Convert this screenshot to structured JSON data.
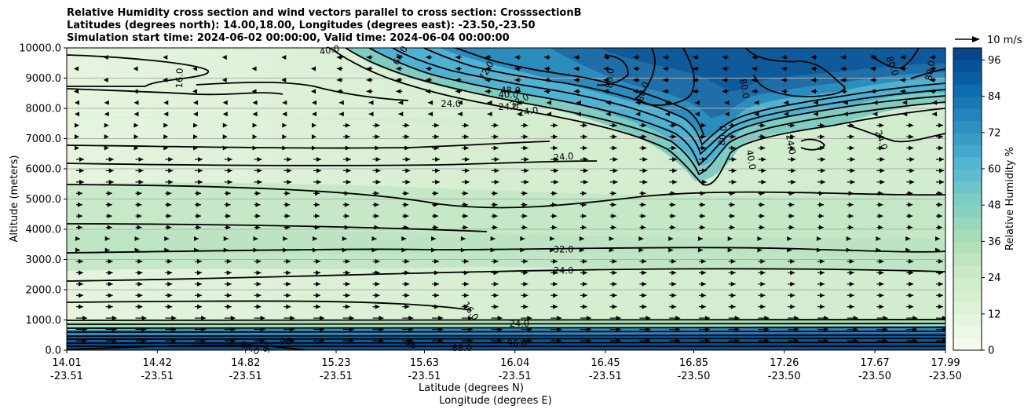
{
  "chart_data": {
    "type": "heatmap",
    "title_lines": [
      "Relative Humidity cross section and wind vectors parallel to cross section: CrosssectionB",
      "Latitudes (degrees north): 14.00,18.00, Longitudes (degrees east): -23.50,-23.50",
      "Simulation start time: 2024-06-02 00:00:00, Valid time: 2024-06-04 00:00:00"
    ],
    "ylabel": "Altitude (meters)",
    "xlabel_lat": "Latitude (degrees N)",
    "xlabel_lon": "Longitude (degrees E)",
    "ylim": [
      0,
      10000
    ],
    "y_ticks": [
      0,
      1000,
      2000,
      3000,
      4000,
      5000,
      6000,
      7000,
      8000,
      9000,
      10000
    ],
    "y_tick_labels": [
      "0.0",
      "1000.0",
      "2000.0",
      "3000.0",
      "4000.0",
      "5000.0",
      "6000.0",
      "7000.0",
      "8000.0",
      "9000.0",
      "10000.0"
    ],
    "xlim": [
      14.01,
      17.99
    ],
    "x_ticks_lat": [
      "14.01",
      "14.42",
      "14.82",
      "15.23",
      "15.63",
      "16.04",
      "16.45",
      "16.85",
      "17.26",
      "17.67",
      "17.99"
    ],
    "x_ticks_lon": [
      "-23.51",
      "-23.51",
      "-23.51",
      "-23.51",
      "-23.51",
      "-23.51",
      "-23.51",
      "-23.50",
      "-23.50",
      "-23.50",
      "-23.50"
    ],
    "grid": "horizontal",
    "colorbar": {
      "label": "Relative Humidity %",
      "ticks": [
        "0",
        "12",
        "24",
        "36",
        "48",
        "60",
        "72",
        "84",
        "96"
      ],
      "range": [
        0,
        100
      ],
      "levels": 25,
      "colormap": [
        "#f7fcf0",
        "#e0f3db",
        "#ccebc5",
        "#a8ddb5",
        "#7bccc4",
        "#4eb3d3",
        "#2b8cbe",
        "#0868ac",
        "#084081"
      ]
    },
    "quiver_key": {
      "label": "10 m/s"
    },
    "contour_labels": [
      {
        "text": "40.0",
        "lat": 15.2,
        "alt": 9930,
        "angle": -10
      },
      {
        "text": "64.0",
        "lat": 15.52,
        "alt": 9750,
        "angle": -60
      },
      {
        "text": "16.0",
        "lat": 14.52,
        "alt": 9000,
        "angle": -88
      },
      {
        "text": "72.0",
        "lat": 15.91,
        "alt": 9250,
        "angle": -60
      },
      {
        "text": "48.0",
        "lat": 16.02,
        "alt": 8600,
        "angle": 0
      },
      {
        "text": "40.0",
        "lat": 16.01,
        "alt": 8450,
        "angle": 0
      },
      {
        "text": "32.0",
        "lat": 16.06,
        "alt": 8250,
        "angle": -30
      },
      {
        "text": "24.0",
        "lat": 16.01,
        "alt": 8050,
        "angle": 0
      },
      {
        "text": "24.0",
        "lat": 15.75,
        "alt": 8150,
        "angle": 0
      },
      {
        "text": "24.0",
        "lat": 16.1,
        "alt": 7900,
        "angle": -10
      },
      {
        "text": "80.0",
        "lat": 16.47,
        "alt": 9000,
        "angle": -85
      },
      {
        "text": "80.0",
        "lat": 16.62,
        "alt": 8550,
        "angle": -70
      },
      {
        "text": "80.0",
        "lat": 16.98,
        "alt": 7100,
        "angle": -85
      },
      {
        "text": "80.0",
        "lat": 17.08,
        "alt": 8650,
        "angle": 80
      },
      {
        "text": "40.0",
        "lat": 17.11,
        "alt": 6300,
        "angle": 80
      },
      {
        "text": "24.0",
        "lat": 17.29,
        "alt": 6800,
        "angle": 80
      },
      {
        "text": "80.0",
        "lat": 17.75,
        "alt": 9400,
        "angle": 70
      },
      {
        "text": "80.0",
        "lat": 17.92,
        "alt": 9250,
        "angle": -80
      },
      {
        "text": "24.0",
        "lat": 17.7,
        "alt": 6950,
        "angle": 70
      },
      {
        "text": "24.0",
        "lat": 16.26,
        "alt": 6400,
        "angle": -5
      },
      {
        "text": "32.0",
        "lat": 16.26,
        "alt": 3340,
        "angle": 0
      },
      {
        "text": "24.0",
        "lat": 16.26,
        "alt": 2630,
        "angle": 0
      },
      {
        "text": "16.0",
        "lat": 15.84,
        "alt": 1300,
        "angle": 55
      },
      {
        "text": "24.0",
        "lat": 16.06,
        "alt": 880,
        "angle": 0
      },
      {
        "text": "96.0",
        "lat": 16.05,
        "alt": 240,
        "angle": 0
      },
      {
        "text": "88.0",
        "lat": 14.84,
        "alt": 80,
        "angle": 25
      },
      {
        "text": "96",
        "lat": 14.92,
        "alt": 100,
        "angle": -65
      },
      {
        "text": "96",
        "lat": 15.57,
        "alt": 220,
        "angle": 30
      },
      {
        "text": "88.0",
        "lat": 15.8,
        "alt": 80,
        "angle": 0
      },
      {
        "text": "96",
        "lat": 15.0,
        "alt": 300,
        "angle": 0
      }
    ]
  }
}
